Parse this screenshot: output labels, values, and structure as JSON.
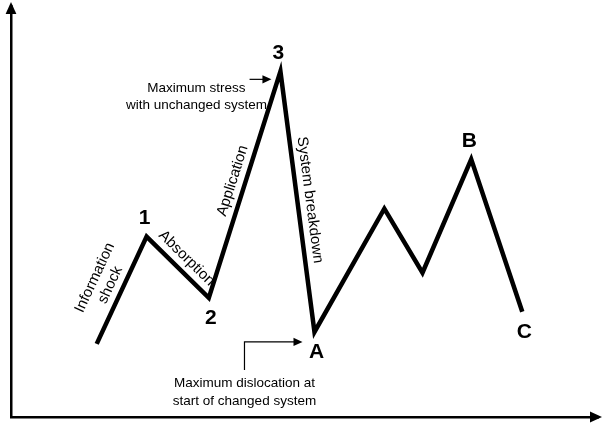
{
  "chart_data": {
    "type": "line",
    "x": [
      14.6,
      23.1,
      33.7,
      45.9,
      51.7,
      63.6,
      70.1,
      78.4,
      87.1
    ],
    "values": [
      17.8,
      43.9,
      29.0,
      84.1,
      20.7,
      50.7,
      35.1,
      62.7,
      25.6
    ],
    "point_labels": [
      null,
      "1",
      "2",
      "3",
      "A",
      null,
      null,
      "B",
      "C"
    ],
    "segment_labels": [
      "Information\nshock",
      "Absorption",
      "Application",
      "System breakdown",
      null,
      null,
      null,
      null
    ],
    "callouts": [
      {
        "text": "Maximum stress\nwith unchanged system",
        "point": "3"
      },
      {
        "text": "Maximum dislocation at\nstart of changed system",
        "point": "A"
      }
    ],
    "xlim": [
      0,
      100
    ],
    "ylim": [
      0,
      100
    ],
    "color": "#000000",
    "grid": false,
    "tick_labels": false
  }
}
